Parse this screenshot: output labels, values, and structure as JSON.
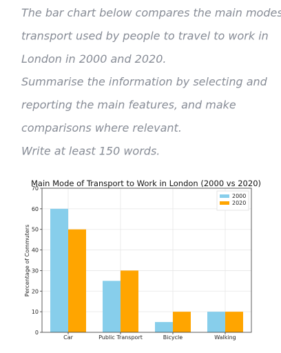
{
  "instructions": [
    "The bar chart below compares the main modes of",
    "transport used by people to travel to work in",
    "London in 2000 and 2020.",
    "Summarise the information by selecting and",
    "reporting the main features, and make",
    "comparisons where relevant.",
    "Write at least 150 words."
  ],
  "chart_data": {
    "type": "bar",
    "title": "Main Mode of Transport to Work in London (2000 vs 2020)",
    "y_label": "Percentage of Commuters",
    "categories": [
      "Car",
      "Public Transport",
      "Bicycle",
      "Walking"
    ],
    "series": [
      {
        "name": "2000",
        "color": "#87ceeb",
        "values": [
          60,
          25,
          5,
          10
        ]
      },
      {
        "name": "2020",
        "color": "#ffa500",
        "values": [
          50,
          30,
          10,
          10
        ]
      }
    ],
    "ylim": [
      0,
      70
    ],
    "yticks": [
      0,
      10,
      20,
      30,
      40,
      50,
      60,
      70
    ],
    "grid": true,
    "legend": "upper right"
  }
}
